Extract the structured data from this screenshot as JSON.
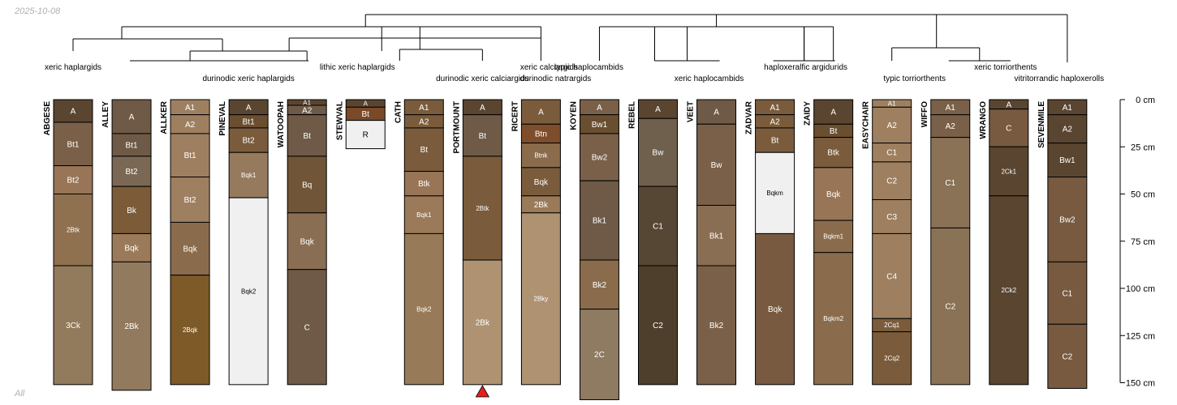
{
  "date_label": "2025-10-08",
  "footer_label": "All",
  "chart_data": {
    "type": "soil_profile_sketch",
    "depth_unit": "cm",
    "depth_range": [
      0,
      150
    ],
    "depth_axis_ticks": [
      {
        "value": 0,
        "label": "0 cm"
      },
      {
        "value": 25,
        "label": "25 cm"
      },
      {
        "value": 50,
        "label": "50 cm"
      },
      {
        "value": 75,
        "label": "75 cm"
      },
      {
        "value": 100,
        "label": "100 cm"
      },
      {
        "value": 125,
        "label": "125 cm"
      },
      {
        "value": 150,
        "label": "150 cm"
      }
    ],
    "profiles": [
      {
        "name": "ABGESE",
        "horizons": [
          {
            "name": "A",
            "top": 0,
            "bottom": 12,
            "color": "#5a4530"
          },
          {
            "name": "Bt1",
            "top": 12,
            "bottom": 35,
            "color": "#7a6048"
          },
          {
            "name": "Bt2",
            "top": 35,
            "bottom": 50,
            "color": "#977556"
          },
          {
            "name": "2Btk",
            "top": 50,
            "bottom": 88,
            "color": "#8f7150"
          },
          {
            "name": "3Ck",
            "top": 88,
            "bottom": 151,
            "color": "#927a5c"
          }
        ]
      },
      {
        "name": "ALLEY",
        "horizons": [
          {
            "name": "A",
            "top": 0,
            "bottom": 18,
            "color": "#6e5a46"
          },
          {
            "name": "Bt1",
            "top": 18,
            "bottom": 30,
            "color": "#6e5a46"
          },
          {
            "name": "Bt2",
            "top": 30,
            "bottom": 46,
            "color": "#7a6854"
          },
          {
            "name": "Bk",
            "top": 46,
            "bottom": 71,
            "color": "#7c5c38"
          },
          {
            "name": "Bqk",
            "top": 71,
            "bottom": 86,
            "color": "#9a7a58"
          },
          {
            "name": "2Bk",
            "top": 86,
            "bottom": 154,
            "color": "#927a5e"
          }
        ]
      },
      {
        "name": "ALLKER",
        "horizons": [
          {
            "name": "A1",
            "top": 0,
            "bottom": 8,
            "color": "#9e8060"
          },
          {
            "name": "A2",
            "top": 8,
            "bottom": 18,
            "color": "#9e8060"
          },
          {
            "name": "Bt1",
            "top": 18,
            "bottom": 41,
            "color": "#9e8060"
          },
          {
            "name": "Bt2",
            "top": 41,
            "bottom": 65,
            "color": "#9e8060"
          },
          {
            "name": "Bqk",
            "top": 65,
            "bottom": 93,
            "color": "#8a6c4c"
          },
          {
            "name": "2Bqk",
            "top": 93,
            "bottom": 151,
            "color": "#7e5a28"
          }
        ]
      },
      {
        "name": "PINEVAL",
        "horizons": [
          {
            "name": "A",
            "top": 0,
            "bottom": 8,
            "color": "#5a4530"
          },
          {
            "name": "Bt1",
            "top": 8,
            "bottom": 15,
            "color": "#6a4e30"
          },
          {
            "name": "Bt2",
            "top": 15,
            "bottom": 28,
            "color": "#7a5c3c"
          },
          {
            "name": "Bqk1",
            "top": 28,
            "bottom": 52,
            "color": "#957a5e"
          },
          {
            "name": "Bqk2",
            "top": 52,
            "bottom": 151,
            "color": "#f0f0f0"
          }
        ]
      },
      {
        "name": "WATOOPAH",
        "horizons": [
          {
            "name": "A1",
            "top": 0,
            "bottom": 3,
            "color": "#5a4530"
          },
          {
            "name": "A2",
            "top": 3,
            "bottom": 8,
            "color": "#6e5a46"
          },
          {
            "name": "Bt",
            "top": 8,
            "bottom": 30,
            "color": "#6e5a46"
          },
          {
            "name": "Bq",
            "top": 30,
            "bottom": 60,
            "color": "#705538"
          },
          {
            "name": "Bqk",
            "top": 60,
            "bottom": 90,
            "color": "#8a6e54"
          },
          {
            "name": "C",
            "top": 90,
            "bottom": 151,
            "color": "#6e5a46"
          }
        ]
      },
      {
        "name": "STEWVAL",
        "horizons": [
          {
            "name": "A",
            "top": 0,
            "bottom": 4,
            "color": "#5a4530"
          },
          {
            "name": "Bt",
            "top": 4,
            "bottom": 11,
            "color": "#7a4a28"
          },
          {
            "name": "R",
            "top": 11,
            "bottom": 26,
            "color": "#f0f0f0"
          }
        ]
      },
      {
        "name": "CATH",
        "horizons": [
          {
            "name": "A1",
            "top": 0,
            "bottom": 8,
            "color": "#7a5c3c"
          },
          {
            "name": "A2",
            "top": 8,
            "bottom": 15,
            "color": "#7a5c3c"
          },
          {
            "name": "Bt",
            "top": 15,
            "bottom": 38,
            "color": "#7a5c3c"
          },
          {
            "name": "Btk",
            "top": 38,
            "bottom": 51,
            "color": "#977556"
          },
          {
            "name": "Bqk1",
            "top": 51,
            "bottom": 71,
            "color": "#9a7a58"
          },
          {
            "name": "Bqk2",
            "top": 71,
            "bottom": 151,
            "color": "#977a58"
          }
        ]
      },
      {
        "name": "PORTMOUNT",
        "horizons": [
          {
            "name": "A",
            "top": 0,
            "bottom": 8,
            "color": "#5a4530"
          },
          {
            "name": "Bt",
            "top": 8,
            "bottom": 30,
            "color": "#6e5a46"
          },
          {
            "name": "2Btk",
            "top": 30,
            "bottom": 85,
            "color": "#7a5c3c"
          },
          {
            "name": "2Bk",
            "top": 85,
            "bottom": 151,
            "color": "#ae9272"
          }
        ]
      },
      {
        "name": "RICERT",
        "horizons": [
          {
            "name": "A",
            "top": 0,
            "bottom": 13,
            "color": "#7a5c3c"
          },
          {
            "name": "Btn",
            "top": 13,
            "bottom": 23,
            "color": "#7e4e2c"
          },
          {
            "name": "Btnk",
            "top": 23,
            "bottom": 36,
            "color": "#8a6c4c"
          },
          {
            "name": "Bqk",
            "top": 36,
            "bottom": 51,
            "color": "#7a5c3c"
          },
          {
            "name": "2Bk",
            "top": 51,
            "bottom": 60,
            "color": "#9a7a58"
          },
          {
            "name": "2Bky",
            "top": 60,
            "bottom": 151,
            "color": "#ae9272"
          }
        ]
      },
      {
        "name": "KOYEN",
        "horizons": [
          {
            "name": "A",
            "top": 0,
            "bottom": 8,
            "color": "#7a6048"
          },
          {
            "name": "Bw1",
            "top": 8,
            "bottom": 18,
            "color": "#6a4e30"
          },
          {
            "name": "Bw2",
            "top": 18,
            "bottom": 43,
            "color": "#7a6048"
          },
          {
            "name": "Bk1",
            "top": 43,
            "bottom": 85,
            "color": "#6e5a46"
          },
          {
            "name": "Bk2",
            "top": 85,
            "bottom": 111,
            "color": "#8a6c4c"
          },
          {
            "name": "2C",
            "top": 111,
            "bottom": 159,
            "color": "#8f7a62"
          }
        ]
      },
      {
        "name": "REBEL",
        "horizons": [
          {
            "name": "A",
            "top": 0,
            "bottom": 10,
            "color": "#5a4530"
          },
          {
            "name": "Bw",
            "top": 10,
            "bottom": 46,
            "color": "#6e604c"
          },
          {
            "name": "C1",
            "top": 46,
            "bottom": 88,
            "color": "#564634"
          },
          {
            "name": "C2",
            "top": 88,
            "bottom": 151,
            "color": "#4e3e2c"
          }
        ]
      },
      {
        "name": "VEET",
        "horizons": [
          {
            "name": "A",
            "top": 0,
            "bottom": 13,
            "color": "#6e5a46"
          },
          {
            "name": "Bw",
            "top": 13,
            "bottom": 56,
            "color": "#7a6048"
          },
          {
            "name": "Bk1",
            "top": 56,
            "bottom": 88,
            "color": "#8a6e54"
          },
          {
            "name": "Bk2",
            "top": 88,
            "bottom": 151,
            "color": "#7a6048"
          }
        ]
      },
      {
        "name": "ZADVAR",
        "horizons": [
          {
            "name": "A1",
            "top": 0,
            "bottom": 8,
            "color": "#7a5c3c"
          },
          {
            "name": "A2",
            "top": 8,
            "bottom": 15,
            "color": "#7a5c3c"
          },
          {
            "name": "Bt",
            "top": 15,
            "bottom": 28,
            "color": "#7a5c3c"
          },
          {
            "name": "Bqkm",
            "top": 28,
            "bottom": 71,
            "color": "#f0f0f0"
          },
          {
            "name": "Bqk",
            "top": 71,
            "bottom": 151,
            "color": "#775a40"
          }
        ]
      },
      {
        "name": "ZAIDY",
        "horizons": [
          {
            "name": "A",
            "top": 0,
            "bottom": 13,
            "color": "#5a4530"
          },
          {
            "name": "Bt",
            "top": 13,
            "bottom": 20,
            "color": "#6a4e30"
          },
          {
            "name": "Btk",
            "top": 20,
            "bottom": 36,
            "color": "#7a5c3c"
          },
          {
            "name": "Bqk",
            "top": 36,
            "bottom": 64,
            "color": "#977556"
          },
          {
            "name": "Bqkm1",
            "top": 64,
            "bottom": 81,
            "color": "#8a6c4c"
          },
          {
            "name": "Bqkm2",
            "top": 81,
            "bottom": 151,
            "color": "#8a6c4c"
          }
        ]
      },
      {
        "name": "EASYCHAIR",
        "horizons": [
          {
            "name": "A1",
            "top": 0,
            "bottom": 4,
            "color": "#9e8060"
          },
          {
            "name": "A2",
            "top": 4,
            "bottom": 23,
            "color": "#9e8060"
          },
          {
            "name": "C1",
            "top": 23,
            "bottom": 33,
            "color": "#9e8060"
          },
          {
            "name": "C2",
            "top": 33,
            "bottom": 53,
            "color": "#9e8060"
          },
          {
            "name": "C3",
            "top": 53,
            "bottom": 71,
            "color": "#9e8060"
          },
          {
            "name": "C4",
            "top": 71,
            "bottom": 116,
            "color": "#9e8060"
          },
          {
            "name": "2Cq1",
            "top": 116,
            "bottom": 123,
            "color": "#7a5c3c"
          },
          {
            "name": "2Cq2",
            "top": 123,
            "bottom": 151,
            "color": "#7a5c3c"
          }
        ]
      },
      {
        "name": "WIFFO",
        "horizons": [
          {
            "name": "A1",
            "top": 0,
            "bottom": 8,
            "color": "#7a6048"
          },
          {
            "name": "A2",
            "top": 8,
            "bottom": 20,
            "color": "#7a6048"
          },
          {
            "name": "C1",
            "top": 20,
            "bottom": 68,
            "color": "#8a7256"
          },
          {
            "name": "C2",
            "top": 68,
            "bottom": 151,
            "color": "#8a7256"
          }
        ]
      },
      {
        "name": "WRANGO",
        "horizons": [
          {
            "name": "A",
            "top": 0,
            "bottom": 5,
            "color": "#5a4530"
          },
          {
            "name": "C",
            "top": 5,
            "bottom": 25,
            "color": "#775a40"
          },
          {
            "name": "2Ck1",
            "top": 25,
            "bottom": 51,
            "color": "#5a4530"
          },
          {
            "name": "2Ck2",
            "top": 51,
            "bottom": 151,
            "color": "#5a4530"
          }
        ]
      },
      {
        "name": "SEVENMILE",
        "horizons": [
          {
            "name": "A1",
            "top": 0,
            "bottom": 8,
            "color": "#5a4530"
          },
          {
            "name": "A2",
            "top": 8,
            "bottom": 23,
            "color": "#5a4530"
          },
          {
            "name": "Bw1",
            "top": 23,
            "bottom": 41,
            "color": "#5a4530"
          },
          {
            "name": "Bw2",
            "top": 41,
            "bottom": 86,
            "color": "#775a40"
          },
          {
            "name": "C1",
            "top": 86,
            "bottom": 119,
            "color": "#775a40"
          },
          {
            "name": "C2",
            "top": 119,
            "bottom": 153,
            "color": "#775a40"
          }
        ]
      }
    ],
    "groups": [
      {
        "label": "xeric haplargids",
        "members": [
          "ABGESE"
        ]
      },
      {
        "label": "durinodic xeric haplargids",
        "members": [
          "ALLEY",
          "ALLKER",
          "PINEVAL",
          "WATOOPAH"
        ]
      },
      {
        "label": "lithic xeric haplargids",
        "members": [
          "STEWVAL"
        ]
      },
      {
        "label": "durinodic xeric calciargids",
        "members": [
          "CATH"
        ]
      },
      {
        "label": "xeric calciargids",
        "members": [
          "PORTMOUNT"
        ]
      },
      {
        "label": "durinodic natrargids",
        "members": [
          "RICERT"
        ]
      },
      {
        "label": "typic haplocambids",
        "members": [
          "KOYEN"
        ]
      },
      {
        "label": "xeric haplocambids",
        "members": [
          "REBEL",
          "VEET"
        ]
      },
      {
        "label": "haploxeralfic argidurids",
        "members": [
          "ZADVAR",
          "ZAIDY"
        ]
      },
      {
        "label": "typic torriorthents",
        "members": [
          "EASYCHAIR"
        ]
      },
      {
        "label": "xeric torriorthents",
        "members": [
          "WIFFO",
          "WRANGO"
        ]
      },
      {
        "label": "vitritorrandic haploxerolls",
        "members": [
          "SEVENMILE"
        ]
      }
    ],
    "marker": {
      "profile": "PORTMOUNT",
      "symbol": "triangle",
      "color": "#e02020"
    }
  }
}
